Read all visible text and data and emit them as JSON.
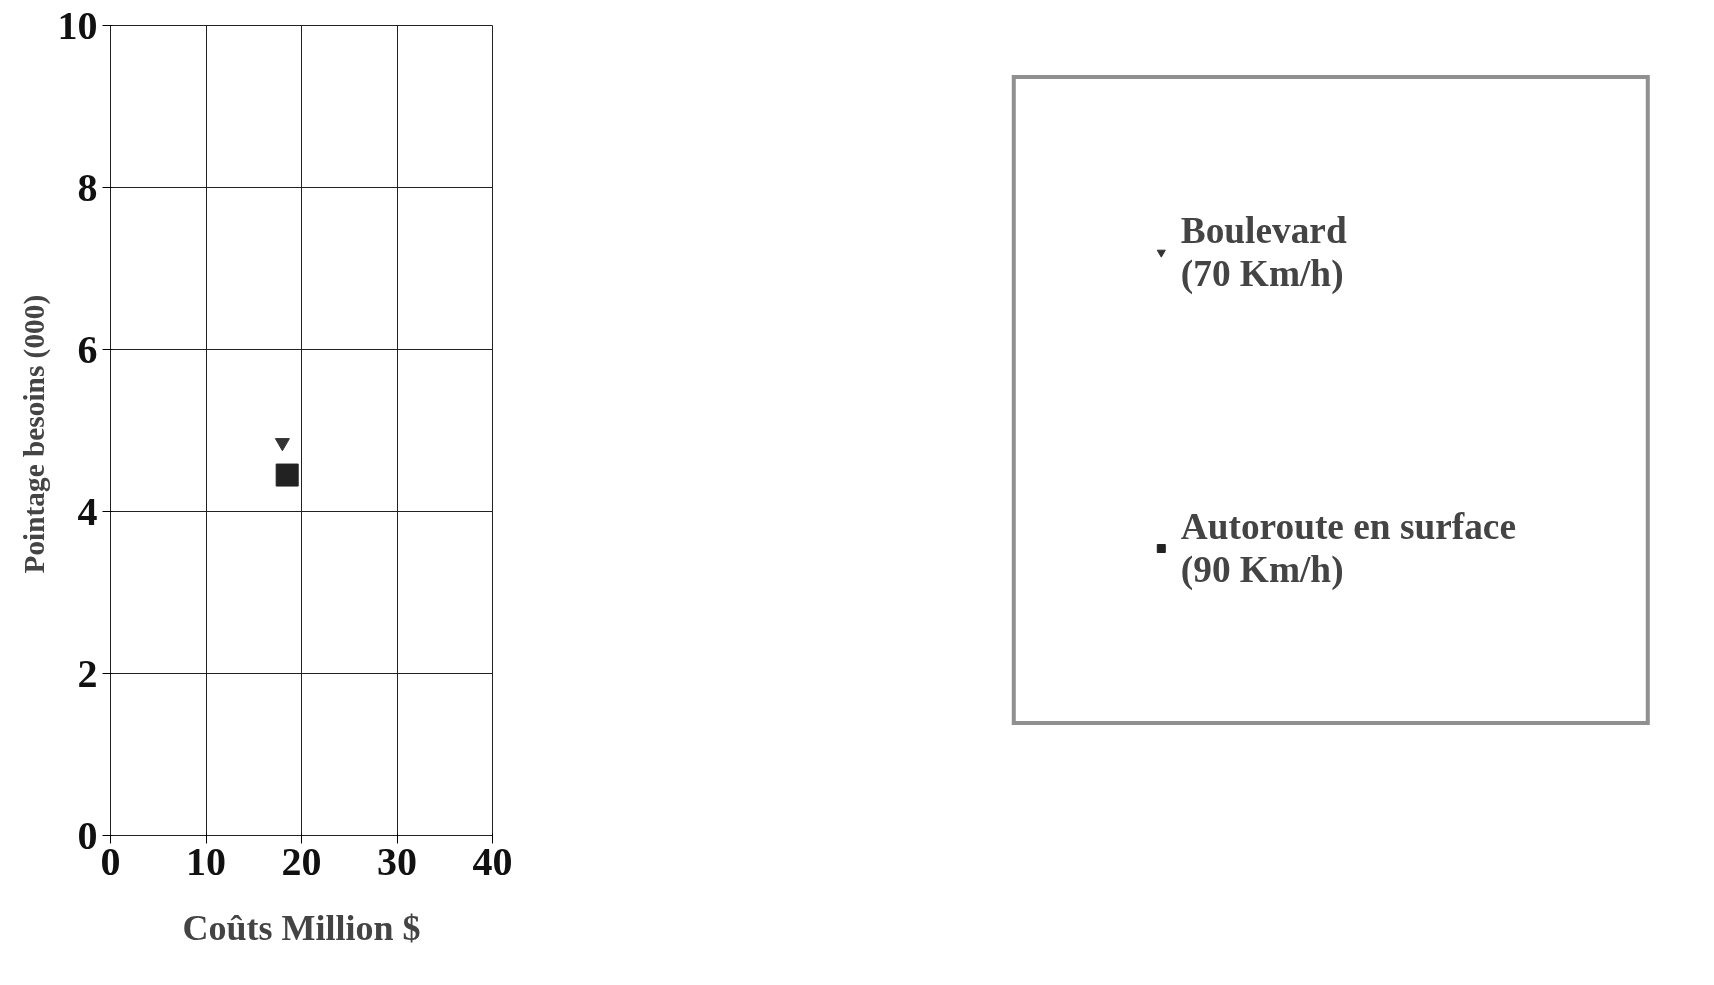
{
  "chart_data": {
    "type": "scatter",
    "xlabel": "Coûts Million $",
    "ylabel": "Pointage  besoins (000)",
    "series": [
      {
        "name": "Boulevard\n(70 Km/h)",
        "color": "#333333",
        "marker": "triangle",
        "x": [
          18.0
        ],
        "values": [
          4.85
        ]
      },
      {
        "name": "Autoroute en surface\n(90 Km/h)",
        "color": "#222222",
        "marker": "square",
        "x": [
          18.5
        ],
        "values": [
          4.45
        ]
      }
    ],
    "xlim": [
      0,
      40
    ],
    "ylim": [
      0,
      10
    ],
    "xticks": [
      0,
      10,
      20,
      30,
      40
    ],
    "yticks": [
      0,
      2,
      4,
      6,
      8,
      10
    ],
    "grid": true,
    "legend": "right"
  }
}
